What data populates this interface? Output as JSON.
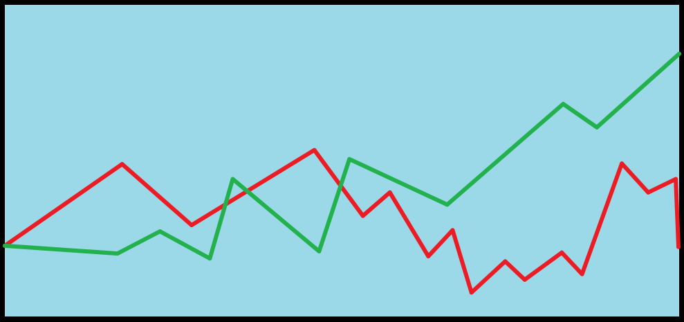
{
  "chart_data": {
    "type": "line",
    "title": "",
    "xlabel": "",
    "ylabel": "",
    "xlim": [
      0,
      100
    ],
    "ylim": [
      0,
      100
    ],
    "grid": false,
    "legend": "none",
    "background_color": "#9bd9e9",
    "frame_color": "#000000",
    "series": [
      {
        "color": "#ec1c24",
        "points": [
          [
            0,
            22.7
          ],
          [
            17.4,
            48.9
          ],
          [
            27.7,
            29.3
          ],
          [
            45.9,
            53.4
          ],
          [
            53.1,
            32.3
          ],
          [
            57.1,
            39.8
          ],
          [
            62.8,
            19.3
          ],
          [
            66.4,
            27.7
          ],
          [
            69.2,
            7.7
          ],
          [
            74.2,
            17.7
          ],
          [
            77.1,
            11.8
          ],
          [
            82.6,
            20.5
          ],
          [
            85.6,
            13.6
          ],
          [
            91.5,
            49.1
          ],
          [
            95.4,
            39.8
          ],
          [
            99.5,
            44.1
          ],
          [
            99.9,
            22.3
          ]
        ]
      },
      {
        "color": "#22b14c",
        "points": [
          [
            0,
            22.7
          ],
          [
            16.7,
            20.2
          ],
          [
            23.0,
            27.3
          ],
          [
            30.4,
            18.6
          ],
          [
            33.8,
            44.1
          ],
          [
            46.6,
            20.9
          ],
          [
            51.1,
            50.5
          ],
          [
            65.6,
            35.9
          ],
          [
            82.8,
            68.2
          ],
          [
            87.8,
            60.7
          ],
          [
            100,
            84.3
          ]
        ]
      }
    ]
  }
}
